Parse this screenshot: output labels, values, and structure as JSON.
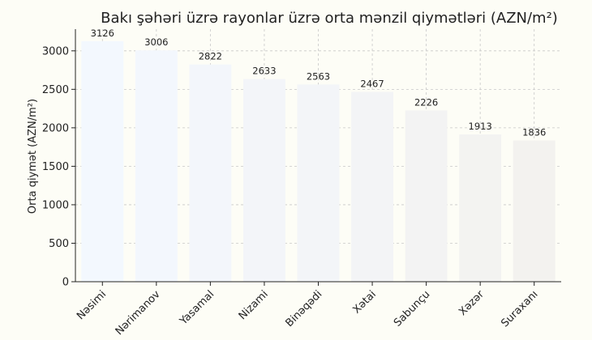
{
  "chart_data": {
    "type": "bar",
    "title": "Bakı şəhəri üzrə rayonlar üzrə orta mənzil qiymətləri (AZN/m²)",
    "xlabel": "",
    "ylabel": "Orta qiymət (AZN/m²)",
    "categories": [
      "Nəsimi",
      "Nərimanov",
      "Yasamal",
      "Nizami",
      "Binəqədi",
      "Xətai",
      "Sabunçu",
      "Xəzər",
      "Suraxanı"
    ],
    "values": [
      3126,
      3006,
      2822,
      2633,
      2563,
      2467,
      2226,
      1913,
      1836
    ],
    "value_labels": [
      "3126",
      "3006",
      "2822",
      "2633",
      "2563",
      "2467",
      "2226",
      "1913",
      "1836"
    ],
    "yticks": [
      0,
      500,
      1000,
      1500,
      2000,
      2500,
      3000
    ],
    "ytick_labels": [
      "0",
      "500",
      "1000",
      "1500",
      "2000",
      "2500",
      "3000"
    ],
    "ylim": [
      0,
      3282
    ],
    "grid": true,
    "bar_colors": [
      "#f3f8fe",
      "#f3f7fd",
      "#f3f6fb",
      "#f3f5f9",
      "#f3f5f8",
      "#f3f4f6",
      "#f3f3f3",
      "#f3f3f1",
      "#f3f2ef"
    ]
  }
}
